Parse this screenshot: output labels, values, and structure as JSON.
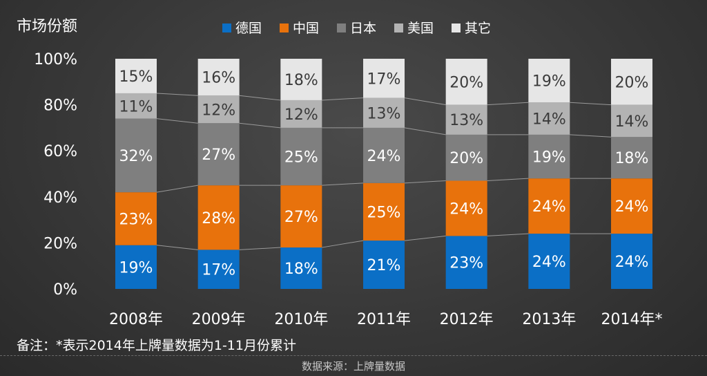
{
  "chart_data": {
    "type": "bar",
    "stacked": true,
    "title": "",
    "ylabel": "市场份额",
    "ylim": [
      0,
      100
    ],
    "y_ticks": [
      "0%",
      "20%",
      "40%",
      "60%",
      "80%",
      "100%"
    ],
    "categories": [
      "2008年",
      "2009年",
      "2010年",
      "2011年",
      "2012年",
      "2013年",
      "2014年*"
    ],
    "legend_position": "top",
    "series": [
      {
        "name": "德国",
        "color": "#0b6fc6",
        "text_color": "#ffffff",
        "values": [
          19,
          17,
          18,
          21,
          23,
          24,
          24
        ]
      },
      {
        "name": "中国",
        "color": "#e8720c",
        "text_color": "#ffffff",
        "values": [
          23,
          28,
          27,
          25,
          24,
          24,
          24
        ]
      },
      {
        "name": "日本",
        "color": "#7f7f7f",
        "text_color": "#ffffff",
        "values": [
          32,
          27,
          25,
          24,
          20,
          19,
          18
        ]
      },
      {
        "name": "美国",
        "color": "#b3b3b3",
        "text_color": "#3a3a3a",
        "values": [
          11,
          12,
          12,
          13,
          13,
          14,
          14
        ]
      },
      {
        "name": "其它",
        "color": "#e6e6e6",
        "text_color": "#3a3a3a",
        "values": [
          15,
          16,
          18,
          17,
          20,
          19,
          20
        ]
      }
    ],
    "value_suffix": "%",
    "note": "备注：*表示2014年上牌量数据为1-11月份累计",
    "source": "数据来源：上牌量数据"
  }
}
